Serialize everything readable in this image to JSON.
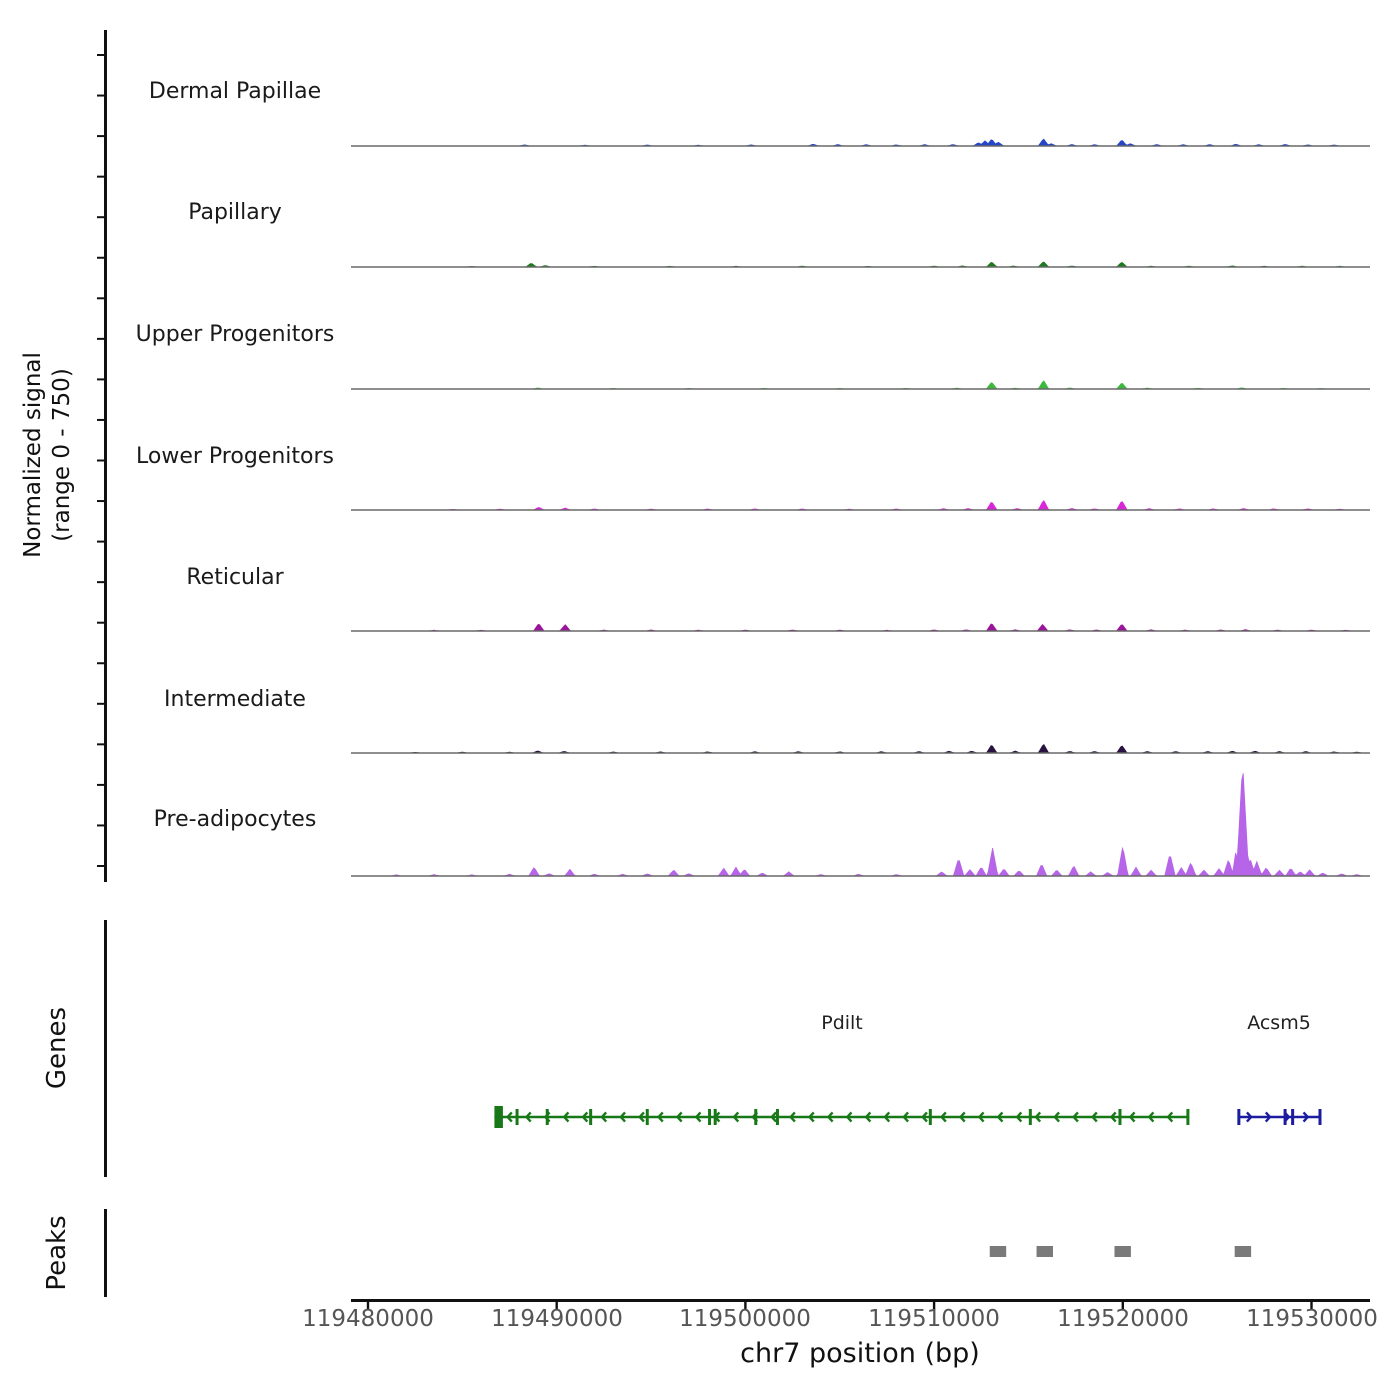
{
  "chart_data": {
    "type": "area",
    "xlabel": "chr7 position (bp)",
    "ylabel_line1": "Normalized signal",
    "ylabel_line2": "(range 0 - 750)",
    "genes_section_label": "Genes",
    "peaks_section_label": "Peaks",
    "x_domain": [
      119479100,
      119533100
    ],
    "y_range_per_track": [
      0,
      750
    ],
    "x_ticks": [
      119480000,
      119490000,
      119500000,
      119510000,
      119520000,
      119530000
    ],
    "tracks": [
      {
        "label": "Dermal Papillae",
        "color": "#2646c8",
        "peaks": [
          [
            119512350,
            22
          ],
          [
            119512700,
            34
          ],
          [
            119513050,
            46
          ],
          [
            119513400,
            26
          ],
          [
            119515800,
            48
          ],
          [
            119516200,
            16
          ],
          [
            119519950,
            40
          ],
          [
            119520400,
            16
          ]
        ],
        "noise": [
          [
            119488300,
            7
          ],
          [
            119491500,
            6
          ],
          [
            119494800,
            7
          ],
          [
            119497500,
            6
          ],
          [
            119500300,
            7
          ],
          [
            119503600,
            12
          ],
          [
            119504900,
            10
          ],
          [
            119506400,
            9
          ],
          [
            119508000,
            8
          ],
          [
            119509500,
            9
          ],
          [
            119511000,
            10
          ],
          [
            119517300,
            10
          ],
          [
            119518500,
            9
          ],
          [
            119521800,
            10
          ],
          [
            119523200,
            9
          ],
          [
            119524600,
            10
          ],
          [
            119526000,
            12
          ],
          [
            119527200,
            9
          ],
          [
            119528600,
            11
          ],
          [
            119529800,
            8
          ],
          [
            119531200,
            7
          ]
        ]
      },
      {
        "label": "Papillary",
        "color": "#1f7a1f",
        "peaks": [
          [
            119488650,
            26
          ],
          [
            119489400,
            10
          ],
          [
            119513050,
            34
          ],
          [
            119515800,
            36
          ],
          [
            119519950,
            33
          ]
        ],
        "noise": [
          [
            119485500,
            4
          ],
          [
            119492000,
            5
          ],
          [
            119496000,
            5
          ],
          [
            119499500,
            5
          ],
          [
            119503000,
            6
          ],
          [
            119506500,
            5
          ],
          [
            119510000,
            6
          ],
          [
            119511500,
            7
          ],
          [
            119514200,
            7
          ],
          [
            119517300,
            7
          ],
          [
            119521500,
            6
          ],
          [
            119523500,
            6
          ],
          [
            119525800,
            8
          ],
          [
            119527500,
            6
          ],
          [
            119529500,
            6
          ],
          [
            119531500,
            5
          ]
        ]
      },
      {
        "label": "Upper Progenitors",
        "color": "#3cb93c",
        "peaks": [
          [
            119513050,
            45
          ],
          [
            119515800,
            57
          ],
          [
            119519950,
            41
          ]
        ],
        "noise": [
          [
            119489000,
            7
          ],
          [
            119493000,
            4
          ],
          [
            119497000,
            4
          ],
          [
            119501000,
            4
          ],
          [
            119505000,
            4
          ],
          [
            119508500,
            5
          ],
          [
            119511200,
            6
          ],
          [
            119514300,
            6
          ],
          [
            119517200,
            7
          ],
          [
            119521300,
            6
          ],
          [
            119524000,
            5
          ],
          [
            119526300,
            7
          ],
          [
            119528500,
            5
          ],
          [
            119530500,
            4
          ]
        ]
      },
      {
        "label": "Lower Progenitors",
        "color": "#d926d9",
        "peaks": [
          [
            119489050,
            18
          ],
          [
            119490450,
            13
          ],
          [
            119513050,
            56
          ],
          [
            119515800,
            66
          ],
          [
            119519950,
            62
          ]
        ],
        "noise": [
          [
            119484500,
            5
          ],
          [
            119487000,
            6
          ],
          [
            119492000,
            7
          ],
          [
            119495000,
            6
          ],
          [
            119498000,
            7
          ],
          [
            119500500,
            8
          ],
          [
            119503000,
            7
          ],
          [
            119505500,
            6
          ],
          [
            119508000,
            7
          ],
          [
            119510500,
            9
          ],
          [
            119511800,
            10
          ],
          [
            119514400,
            10
          ],
          [
            119517300,
            11
          ],
          [
            119518500,
            8
          ],
          [
            119521400,
            9
          ],
          [
            119523000,
            8
          ],
          [
            119524800,
            8
          ],
          [
            119526400,
            10
          ],
          [
            119528000,
            8
          ],
          [
            119529800,
            8
          ],
          [
            119531500,
            6
          ]
        ]
      },
      {
        "label": "Reticular",
        "color": "#9b149b",
        "peaks": [
          [
            119489050,
            50
          ],
          [
            119490450,
            43
          ],
          [
            119513050,
            52
          ],
          [
            119515750,
            44
          ],
          [
            119519950,
            46
          ]
        ],
        "noise": [
          [
            119483500,
            5
          ],
          [
            119486000,
            5
          ],
          [
            119492500,
            6
          ],
          [
            119495000,
            7
          ],
          [
            119497500,
            6
          ],
          [
            119500000,
            6
          ],
          [
            119502500,
            7
          ],
          [
            119505000,
            6
          ],
          [
            119507500,
            5
          ],
          [
            119510000,
            7
          ],
          [
            119511700,
            8
          ],
          [
            119514300,
            8
          ],
          [
            119517200,
            8
          ],
          [
            119518600,
            7
          ],
          [
            119521500,
            8
          ],
          [
            119523300,
            6
          ],
          [
            119525200,
            7
          ],
          [
            119526500,
            9
          ],
          [
            119528200,
            6
          ],
          [
            119530000,
            6
          ],
          [
            119531800,
            5
          ]
        ]
      },
      {
        "label": "Intermediate",
        "color": "#2a1340",
        "peaks": [
          [
            119489000,
            14
          ],
          [
            119490400,
            11
          ],
          [
            119513050,
            55
          ],
          [
            119515800,
            60
          ],
          [
            119519950,
            51
          ]
        ],
        "noise": [
          [
            119482500,
            5
          ],
          [
            119485000,
            6
          ],
          [
            119487500,
            6
          ],
          [
            119493000,
            7
          ],
          [
            119495500,
            7
          ],
          [
            119498000,
            8
          ],
          [
            119500500,
            9
          ],
          [
            119502800,
            9
          ],
          [
            119505000,
            8
          ],
          [
            119507200,
            9
          ],
          [
            119509200,
            10
          ],
          [
            119510800,
            12
          ],
          [
            119512000,
            12
          ],
          [
            119514300,
            13
          ],
          [
            119517200,
            11
          ],
          [
            119518500,
            11
          ],
          [
            119521300,
            11
          ],
          [
            119522800,
            10
          ],
          [
            119524500,
            11
          ],
          [
            119525800,
            12
          ],
          [
            119527000,
            12
          ],
          [
            119528300,
            10
          ],
          [
            119529700,
            10
          ],
          [
            119531200,
            8
          ],
          [
            119532400,
            6
          ]
        ]
      },
      {
        "label": "Pre-adipocytes",
        "color": "#b765e8",
        "peaks": [
          [
            119488800,
            58
          ],
          [
            119490700,
            44
          ],
          [
            119496200,
            40
          ],
          [
            119498850,
            52
          ],
          [
            119499500,
            58
          ],
          [
            119499950,
            44
          ],
          [
            119502300,
            28
          ],
          [
            119511300,
            118
          ],
          [
            119513100,
            185
          ],
          [
            119515700,
            80
          ],
          [
            119517400,
            68
          ],
          [
            119520000,
            198
          ],
          [
            119522500,
            148
          ],
          [
            119523600,
            88
          ],
          [
            119525600,
            108
          ],
          [
            119526000,
            170,
            200
          ],
          [
            119526350,
            750,
            330
          ],
          [
            119526750,
            115
          ],
          [
            119527100,
            95
          ],
          [
            119528900,
            52
          ],
          [
            119529900,
            40
          ]
        ],
        "noise": [
          [
            119481500,
            8
          ],
          [
            119483500,
            9
          ],
          [
            119485500,
            8
          ],
          [
            119487500,
            12
          ],
          [
            119489600,
            16
          ],
          [
            119492000,
            12
          ],
          [
            119493500,
            12
          ],
          [
            119494800,
            14
          ],
          [
            119497000,
            16
          ],
          [
            119500900,
            20
          ],
          [
            119504000,
            10
          ],
          [
            119506000,
            12
          ],
          [
            119508000,
            10
          ],
          [
            119510400,
            28
          ],
          [
            119511900,
            42
          ],
          [
            119512500,
            60
          ],
          [
            119513700,
            48
          ],
          [
            119514500,
            36
          ],
          [
            119516500,
            40
          ],
          [
            119518300,
            28
          ],
          [
            119519200,
            24
          ],
          [
            119520700,
            58
          ],
          [
            119521500,
            38
          ],
          [
            119523100,
            55
          ],
          [
            119524300,
            38
          ],
          [
            119525100,
            48
          ],
          [
            119527600,
            55
          ],
          [
            119528300,
            38
          ],
          [
            119529400,
            28
          ],
          [
            119530600,
            20
          ],
          [
            119531600,
            14
          ],
          [
            119532400,
            10
          ]
        ]
      }
    ],
    "genes": [
      {
        "name": "Pdilt",
        "strand": "-",
        "color": "#187818",
        "start": 119486700,
        "end": 119523500,
        "start_block": [
          119486700,
          119487150
        ],
        "exons": [
          119487900,
          119489500,
          119491800,
          119494800,
          119498100,
          119498400,
          119500550,
          119501700,
          119509800,
          119515100,
          119519850,
          119523450
        ]
      },
      {
        "name": "Acsm5",
        "strand": "+",
        "color": "#1c1ca0",
        "start": 119526100,
        "end": 119530500,
        "exons": [
          119526150,
          119528600,
          119529000,
          119530450
        ]
      }
    ],
    "peak_regions": {
      "color": "#7a7a7a",
      "intervals": [
        [
          119512950,
          119513820
        ],
        [
          119515430,
          119516300
        ],
        [
          119519560,
          119520430
        ],
        [
          119525930,
          119526800
        ]
      ]
    }
  }
}
